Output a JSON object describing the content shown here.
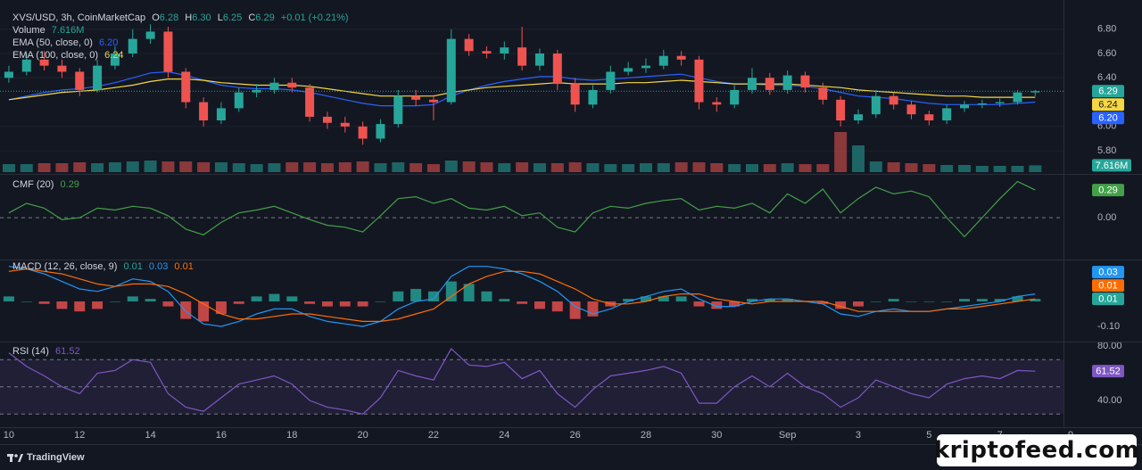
{
  "chart_data": [
    {
      "type": "candlestick",
      "title": "XVS/USD, 3h, CoinMarketCap",
      "header": [
        {
          "name": "O",
          "label": "6.28"
        },
        {
          "name": "H",
          "label": "6.30"
        },
        {
          "name": "L",
          "label": "6.25"
        },
        {
          "name": "C",
          "label": "6.29"
        }
      ],
      "change": "+0.01 (+0.21%)",
      "xlim": [
        -0.5,
        60
      ],
      "xticks": [
        {
          "value": 0,
          "label": "10"
        },
        {
          "value": 4,
          "label": "12"
        },
        {
          "value": 8,
          "label": "14"
        },
        {
          "value": 12,
          "label": "16"
        },
        {
          "value": 16,
          "label": "18"
        },
        {
          "value": 20,
          "label": "20"
        },
        {
          "value": 24,
          "label": "22"
        },
        {
          "value": 28,
          "label": "24"
        },
        {
          "value": 32,
          "label": "26"
        },
        {
          "value": 36,
          "label": "28"
        },
        {
          "value": 40,
          "label": "30"
        },
        {
          "value": 44,
          "label": "Sep"
        },
        {
          "value": 48,
          "label": "3"
        },
        {
          "value": 52,
          "label": "5"
        },
        {
          "value": 56,
          "label": "7"
        },
        {
          "value": 60,
          "label": "9"
        }
      ],
      "ylim": [
        5.61,
        7.04
      ],
      "yticks": [
        {
          "value": 5.8,
          "label": "5.80"
        },
        {
          "value": 6.0,
          "label": "6.00"
        },
        {
          "value": 6.4,
          "label": "6.40"
        },
        {
          "value": 6.6,
          "label": "6.60"
        },
        {
          "value": 6.8,
          "label": "6.80"
        }
      ],
      "grid": true,
      "up_color": "#26a69a",
      "down_color": "#ef5350",
      "open": [
        6.4,
        6.45,
        6.55,
        6.5,
        6.45,
        6.3,
        6.5,
        6.6,
        6.72,
        6.78,
        6.45,
        6.2,
        6.05,
        6.15,
        6.28,
        6.3,
        6.36,
        6.32,
        6.08,
        6.03,
        6.0,
        5.9,
        6.02,
        6.25,
        6.22,
        6.2,
        6.72,
        6.62,
        6.6,
        6.65,
        6.5,
        6.6,
        6.35,
        6.18,
        6.3,
        6.45,
        6.48,
        6.5,
        6.58,
        6.55,
        6.2,
        6.18,
        6.3,
        6.4,
        6.3,
        6.42,
        6.32,
        6.22,
        6.05,
        6.1,
        6.25,
        6.18,
        6.1,
        6.05,
        6.15,
        6.18,
        6.19,
        6.2,
        6.28
      ],
      "high": [
        6.5,
        6.6,
        6.62,
        6.55,
        6.48,
        6.55,
        6.66,
        6.8,
        6.84,
        6.82,
        6.48,
        6.24,
        6.2,
        6.32,
        6.35,
        6.4,
        6.4,
        6.35,
        6.12,
        6.08,
        6.04,
        6.06,
        6.3,
        6.3,
        6.26,
        6.8,
        6.76,
        6.66,
        6.7,
        6.82,
        6.64,
        6.63,
        6.4,
        6.34,
        6.5,
        6.53,
        6.56,
        6.63,
        6.62,
        6.58,
        6.24,
        6.34,
        6.48,
        6.44,
        6.46,
        6.45,
        6.36,
        6.25,
        6.14,
        6.3,
        6.28,
        6.21,
        6.13,
        6.18,
        6.21,
        6.22,
        6.23,
        6.3,
        6.3
      ],
      "low": [
        6.36,
        6.42,
        6.46,
        6.4,
        6.25,
        6.28,
        6.47,
        6.57,
        6.68,
        6.4,
        6.15,
        6.0,
        6.02,
        6.12,
        6.24,
        6.27,
        6.28,
        6.04,
        5.98,
        5.95,
        5.85,
        5.87,
        5.99,
        6.17,
        6.05,
        6.18,
        6.58,
        6.56,
        6.55,
        6.46,
        6.46,
        6.3,
        6.12,
        6.15,
        6.27,
        6.42,
        6.44,
        6.47,
        6.5,
        6.14,
        6.12,
        6.15,
        6.27,
        6.26,
        6.27,
        6.28,
        6.18,
        6.0,
        6.02,
        6.07,
        6.14,
        6.06,
        6.01,
        6.02,
        6.12,
        6.15,
        6.16,
        6.18,
        6.25
      ],
      "close": [
        6.45,
        6.55,
        6.5,
        6.45,
        6.3,
        6.5,
        6.6,
        6.72,
        6.78,
        6.45,
        6.2,
        6.05,
        6.15,
        6.28,
        6.3,
        6.36,
        6.32,
        6.08,
        6.03,
        6.0,
        5.9,
        6.02,
        6.25,
        6.22,
        6.2,
        6.72,
        6.62,
        6.6,
        6.65,
        6.5,
        6.6,
        6.35,
        6.18,
        6.3,
        6.45,
        6.48,
        6.5,
        6.58,
        6.55,
        6.2,
        6.18,
        6.3,
        6.4,
        6.3,
        6.42,
        6.32,
        6.22,
        6.05,
        6.1,
        6.25,
        6.18,
        6.1,
        6.05,
        6.15,
        6.18,
        6.19,
        6.2,
        6.28,
        6.29
      ],
      "last_label": "6.29",
      "series": [
        {
          "name": "EMA (50, close, 0)",
          "color": "#2962ff",
          "value_label": "6.20",
          "values": [
            6.22,
            6.25,
            6.28,
            6.3,
            6.31,
            6.33,
            6.36,
            6.4,
            6.44,
            6.45,
            6.42,
            6.38,
            6.34,
            6.32,
            6.31,
            6.31,
            6.3,
            6.28,
            6.25,
            6.22,
            6.19,
            6.17,
            6.17,
            6.17,
            6.18,
            6.25,
            6.3,
            6.34,
            6.37,
            6.39,
            6.41,
            6.41,
            6.39,
            6.38,
            6.39,
            6.4,
            6.41,
            6.42,
            6.43,
            6.4,
            6.37,
            6.35,
            6.35,
            6.34,
            6.34,
            6.33,
            6.31,
            6.28,
            6.25,
            6.24,
            6.23,
            6.21,
            6.19,
            6.18,
            6.18,
            6.18,
            6.18,
            6.19,
            6.2
          ]
        },
        {
          "name": "EMA (100, close, 0)",
          "color": "#f5d742",
          "value_label": "6.24",
          "values": [
            6.22,
            6.24,
            6.26,
            6.28,
            6.29,
            6.3,
            6.32,
            6.34,
            6.37,
            6.39,
            6.39,
            6.38,
            6.36,
            6.35,
            6.34,
            6.34,
            6.34,
            6.33,
            6.31,
            6.29,
            6.27,
            6.25,
            6.25,
            6.25,
            6.25,
            6.28,
            6.3,
            6.32,
            6.33,
            6.34,
            6.35,
            6.36,
            6.35,
            6.35,
            6.35,
            6.36,
            6.36,
            6.37,
            6.38,
            6.37,
            6.36,
            6.35,
            6.35,
            6.35,
            6.35,
            6.34,
            6.33,
            6.32,
            6.3,
            6.29,
            6.28,
            6.27,
            6.26,
            6.25,
            6.25,
            6.24,
            6.24,
            6.24,
            6.24
          ]
        }
      ]
    },
    {
      "type": "bar",
      "name": "Volume",
      "value_label": "7.616M",
      "ylim": [
        0,
        60
      ],
      "up_color": "#26a69a",
      "down_color": "#ef5350",
      "values": [
        9,
        9,
        10,
        10,
        11,
        10,
        11,
        12,
        13,
        12,
        12,
        11,
        11,
        10,
        9,
        10,
        11,
        11,
        10,
        11,
        12,
        10,
        11,
        10,
        9,
        13,
        12,
        11,
        10,
        11,
        10,
        10,
        11,
        10,
        9,
        9,
        10,
        10,
        11,
        11,
        10,
        9,
        9,
        9,
        10,
        9,
        9,
        45,
        30,
        12,
        11,
        10,
        9,
        8,
        8,
        7,
        7,
        7,
        7.616
      ]
    },
    {
      "type": "line",
      "name": "CMF (20)",
      "color": "#43a047",
      "value_label": "0.29",
      "ylim": [
        -0.43,
        0.45
      ],
      "yticks": [
        {
          "value": 0,
          "label": "0.00"
        }
      ],
      "hlines": [
        0
      ],
      "values": [
        0.05,
        0.15,
        0.1,
        -0.02,
        0.0,
        0.1,
        0.08,
        0.12,
        0.1,
        0.02,
        -0.12,
        -0.18,
        -0.05,
        0.05,
        0.08,
        0.12,
        0.05,
        -0.02,
        -0.08,
        -0.1,
        -0.15,
        0.02,
        0.2,
        0.22,
        0.15,
        0.2,
        0.1,
        0.08,
        0.12,
        0.02,
        0.05,
        -0.1,
        -0.15,
        0.05,
        0.12,
        0.1,
        0.15,
        0.18,
        0.2,
        0.08,
        0.12,
        0.1,
        0.15,
        0.05,
        0.25,
        0.15,
        0.3,
        0.05,
        0.2,
        0.32,
        0.25,
        0.28,
        0.22,
        0.0,
        -0.2,
        0.0,
        0.2,
        0.38,
        0.29
      ]
    },
    {
      "type": "macd",
      "name": "MACD (12, 26, close, 9)",
      "ylim": [
        -0.157,
        0.164
      ],
      "yticks": [
        {
          "value": -0.1,
          "label": "-0.10"
        }
      ],
      "histogram": {
        "up_color": "#26a69a",
        "down_color": "#ef5350",
        "value_label": "0.01",
        "values": [
          0.02,
          0.0,
          -0.01,
          -0.03,
          -0.04,
          -0.03,
          0.0,
          0.02,
          0.01,
          -0.02,
          -0.07,
          -0.08,
          -0.05,
          -0.01,
          0.02,
          0.03,
          0.02,
          -0.01,
          -0.02,
          -0.02,
          -0.02,
          0.0,
          0.04,
          0.05,
          0.04,
          0.08,
          0.07,
          0.04,
          0.01,
          -0.01,
          -0.03,
          -0.04,
          -0.07,
          -0.06,
          -0.02,
          0.01,
          0.02,
          0.02,
          0.02,
          -0.02,
          -0.03,
          -0.02,
          0.01,
          0.01,
          0.01,
          0.0,
          -0.01,
          -0.03,
          -0.02,
          0.0,
          0.01,
          0.0,
          0.0,
          0.0,
          0.01,
          0.01,
          0.01,
          0.02,
          0.01
        ]
      },
      "macd": {
        "color": "#2196f3",
        "value_label": "0.03",
        "values": [
          0.14,
          0.13,
          0.11,
          0.08,
          0.05,
          0.04,
          0.06,
          0.09,
          0.08,
          0.04,
          -0.04,
          -0.09,
          -0.1,
          -0.08,
          -0.05,
          -0.03,
          -0.03,
          -0.06,
          -0.08,
          -0.09,
          -0.1,
          -0.08,
          -0.03,
          0.0,
          0.01,
          0.1,
          0.14,
          0.14,
          0.13,
          0.11,
          0.08,
          0.04,
          -0.02,
          -0.05,
          -0.03,
          0.0,
          0.02,
          0.04,
          0.05,
          0.01,
          -0.02,
          -0.02,
          0.0,
          0.01,
          0.01,
          0.0,
          -0.01,
          -0.05,
          -0.06,
          -0.04,
          -0.03,
          -0.04,
          -0.04,
          -0.03,
          -0.02,
          -0.01,
          0.0,
          0.02,
          0.03
        ]
      },
      "signal": {
        "color": "#ff6d00",
        "value_label": "0.01",
        "values": [
          0.12,
          0.13,
          0.12,
          0.11,
          0.09,
          0.07,
          0.06,
          0.07,
          0.07,
          0.06,
          0.03,
          -0.01,
          -0.05,
          -0.07,
          -0.07,
          -0.06,
          -0.05,
          -0.05,
          -0.06,
          -0.07,
          -0.08,
          -0.08,
          -0.07,
          -0.05,
          -0.03,
          0.02,
          0.07,
          0.1,
          0.12,
          0.12,
          0.11,
          0.08,
          0.05,
          0.01,
          -0.01,
          -0.01,
          0.0,
          0.02,
          0.03,
          0.03,
          0.01,
          0.0,
          -0.01,
          0.0,
          0.0,
          0.0,
          0.0,
          -0.02,
          -0.04,
          -0.04,
          -0.04,
          -0.04,
          -0.04,
          -0.03,
          -0.03,
          -0.02,
          -0.01,
          0.0,
          0.01
        ]
      }
    },
    {
      "type": "line",
      "name": "RSI (14)",
      "color": "#7e57c2",
      "value_label": "61.52",
      "ylim": [
        21,
        82.6
      ],
      "yticks": [
        {
          "value": 80,
          "label": "80.00"
        },
        {
          "value": 40,
          "label": "40.00"
        }
      ],
      "band": [
        30,
        70
      ],
      "band_color": "rgba(126,87,194,0.13)",
      "hlines": [
        70,
        50,
        30
      ],
      "values": [
        75,
        65,
        58,
        50,
        45,
        60,
        62,
        70,
        68,
        45,
        35,
        32,
        42,
        52,
        55,
        58,
        52,
        40,
        35,
        33,
        30,
        42,
        62,
        58,
        55,
        78,
        66,
        65,
        68,
        56,
        62,
        45,
        35,
        48,
        58,
        60,
        62,
        65,
        60,
        38,
        38,
        50,
        58,
        50,
        60,
        50,
        45,
        35,
        42,
        55,
        50,
        45,
        42,
        52,
        56,
        58,
        56,
        62,
        61.52
      ]
    }
  ],
  "footer": {
    "brand": "TradingView",
    "watermark": "kriptofeed.com"
  }
}
